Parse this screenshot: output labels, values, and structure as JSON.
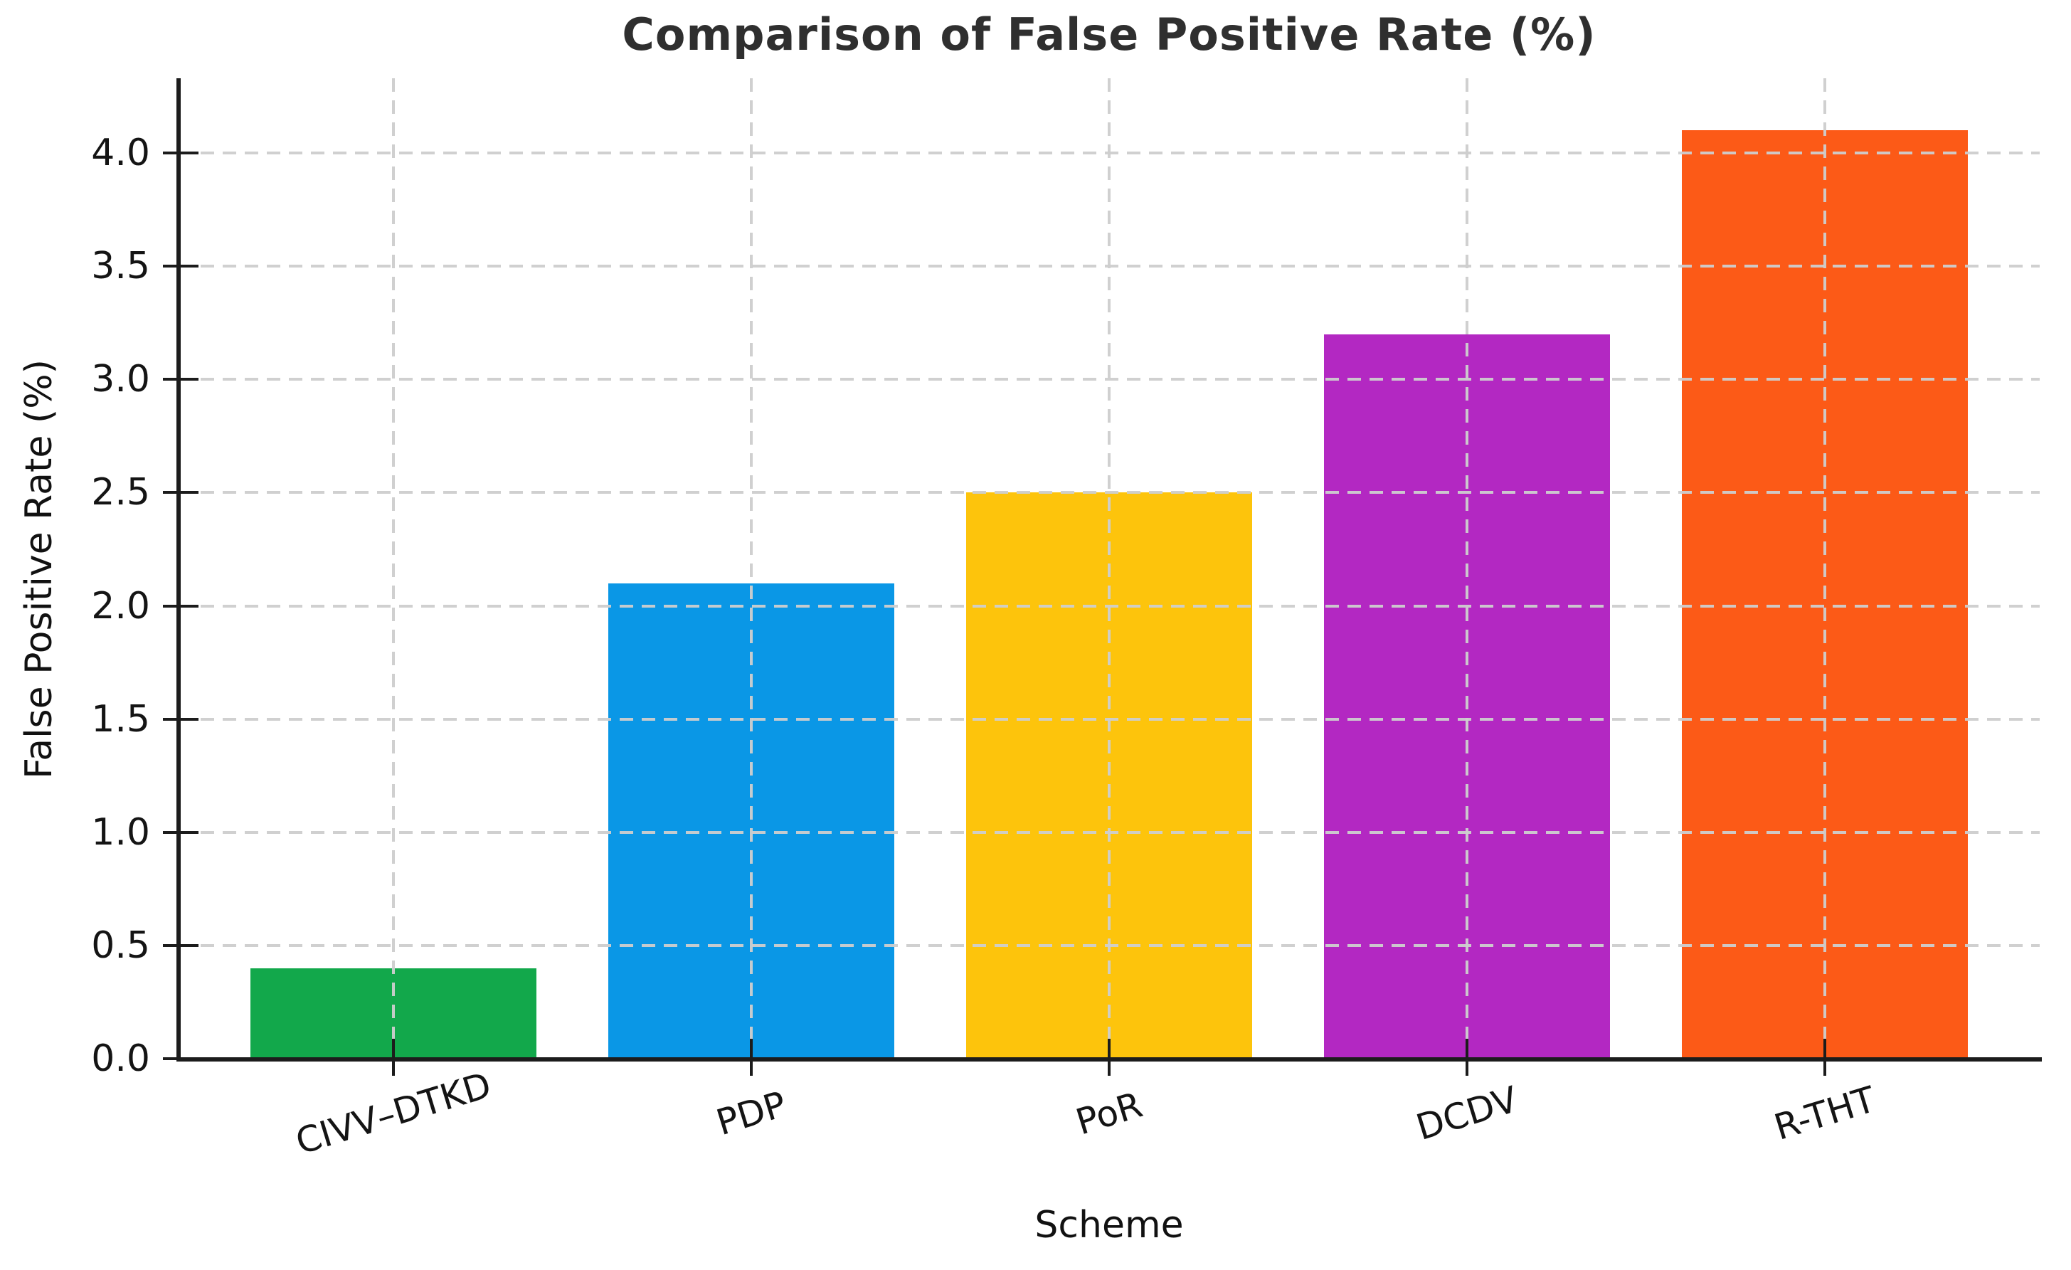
{
  "chart_data": {
    "type": "bar",
    "title": "Comparison of False Positive Rate (%)",
    "xlabel": "Scheme",
    "ylabel": "False Positive Rate (%)",
    "categories": [
      "CIVV–DTKD",
      "PDP",
      "PoR",
      "DCDV",
      "R-THT"
    ],
    "values": [
      0.4,
      2.1,
      2.5,
      3.2,
      4.1
    ],
    "bar_colors": [
      "#12a84b",
      "#0a97e6",
      "#fdc40c",
      "#b328c2",
      "#fc5a17"
    ],
    "ylim": [
      0,
      4.33
    ],
    "yticks": [
      0.0,
      0.5,
      1.0,
      1.5,
      2.0,
      2.5,
      3.0,
      3.5,
      4.0
    ],
    "ytick_labels": [
      "0.0",
      "0.5",
      "1.0",
      "1.5",
      "2.0",
      "2.5",
      "3.0",
      "3.5",
      "4.0"
    ],
    "bar_width_fraction": 0.8,
    "grid": true,
    "grid_style": "dashed",
    "grid_on_top": true,
    "xtick_rotation_deg": 17,
    "legend": "none"
  }
}
